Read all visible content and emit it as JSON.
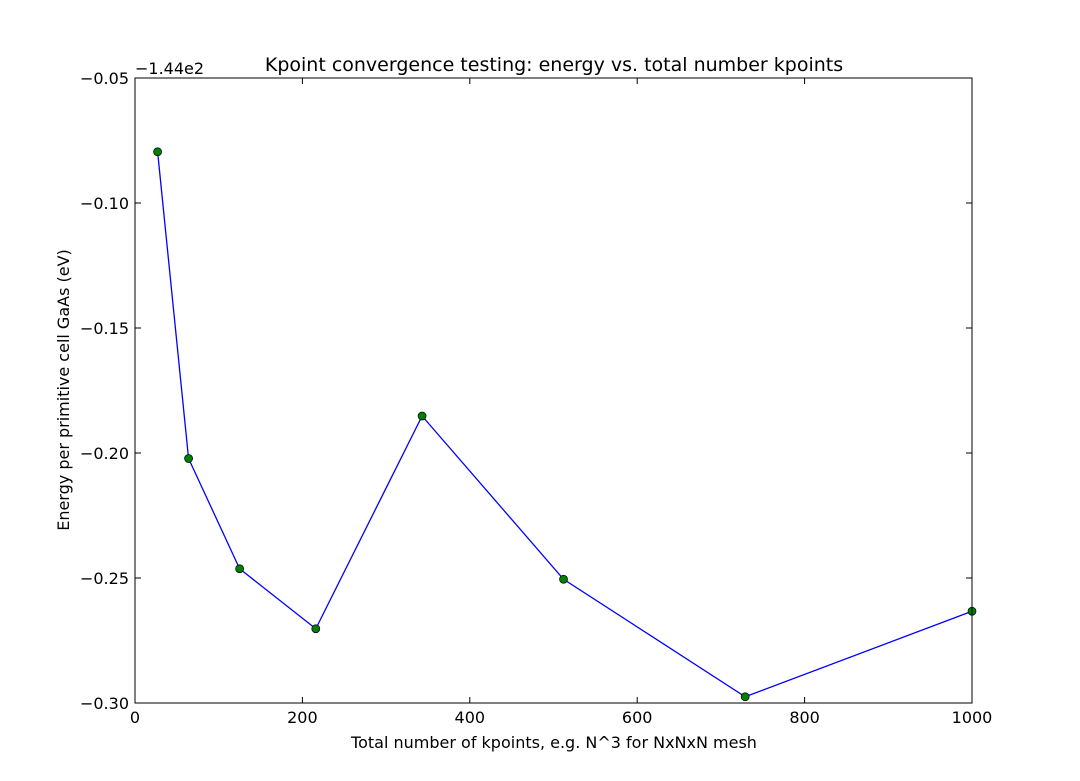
{
  "chart_data": {
    "type": "line",
    "title": "Kpoint convergence testing: energy vs. total number kpoints",
    "xlabel": "Total number of kpoints, e.g. N^3 for NxNxN mesh",
    "ylabel": "Energy per primitive cell GaAs (eV)",
    "offset_text": "−1.44e2",
    "xlim": [
      0,
      1000
    ],
    "ylim": [
      -0.3,
      -0.05
    ],
    "x_ticks": [
      0,
      200,
      400,
      600,
      800,
      1000
    ],
    "x_tick_labels": [
      "0",
      "200",
      "400",
      "600",
      "800",
      "1000"
    ],
    "y_ticks": [
      -0.3,
      -0.25,
      -0.2,
      -0.15,
      -0.1,
      -0.05
    ],
    "y_tick_labels": [
      "−0.30",
      "−0.25",
      "−0.20",
      "−0.15",
      "−0.10",
      "−0.05"
    ],
    "grid": false,
    "line_color": "#0000ff",
    "marker_color": "#008000",
    "series": [
      {
        "x": [
          27,
          64,
          125,
          216,
          343,
          512,
          729,
          1000
        ],
        "values": [
          -0.0795,
          -0.2022,
          -0.2463,
          -0.2703,
          -0.1852,
          -0.2505,
          -0.2975,
          -0.2633
        ]
      }
    ]
  }
}
